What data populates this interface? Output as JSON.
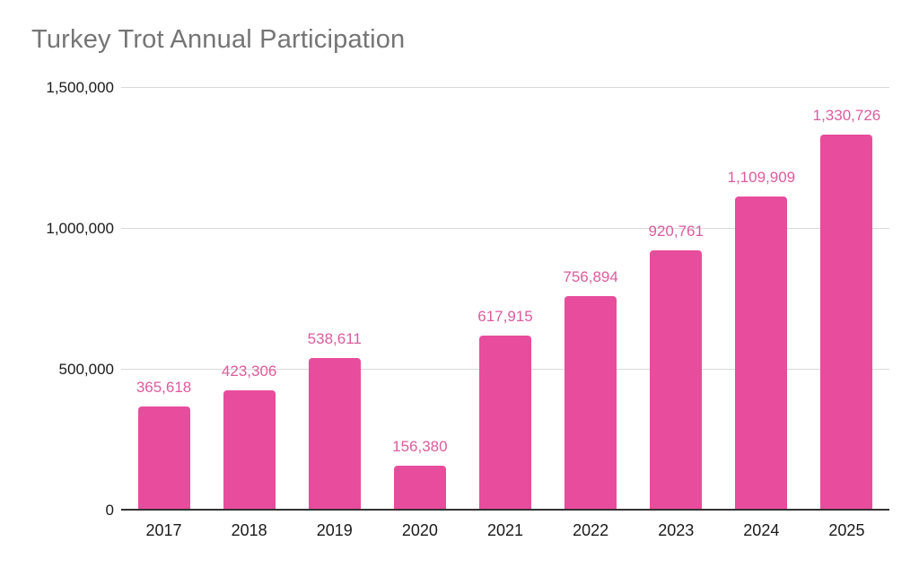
{
  "title": "Turkey Trot Annual Participation",
  "colors": {
    "bar": "#e84c9c",
    "data_label": "#dc5c9d",
    "title_text": "#757575",
    "axis_text": "#1a1a1a",
    "gridline": "#d9d9d9",
    "baseline": "#333333",
    "background": "#ffffff"
  },
  "chart_data": {
    "type": "bar",
    "title": "Turkey Trot Annual Participation",
    "categories": [
      "2017",
      "2018",
      "2019",
      "2020",
      "2021",
      "2022",
      "2023",
      "2024",
      "2025"
    ],
    "values": [
      365618,
      423306,
      538611,
      156380,
      617915,
      756894,
      920761,
      1109909,
      1330726
    ],
    "data_labels": [
      "365,618",
      "423,306",
      "538,611",
      "156,380",
      "617,915",
      "756,894",
      "920,761",
      "1,109,909",
      "1,330,726"
    ],
    "xlabel": "",
    "ylabel": "",
    "ylim": [
      0,
      1500000
    ],
    "y_ticks": [
      {
        "value": 0,
        "label": "0"
      },
      {
        "value": 500000,
        "label": "500,000"
      },
      {
        "value": 1000000,
        "label": "1,000,000"
      },
      {
        "value": 1500000,
        "label": "1,500,000"
      }
    ],
    "grid": true,
    "legend": "none"
  }
}
